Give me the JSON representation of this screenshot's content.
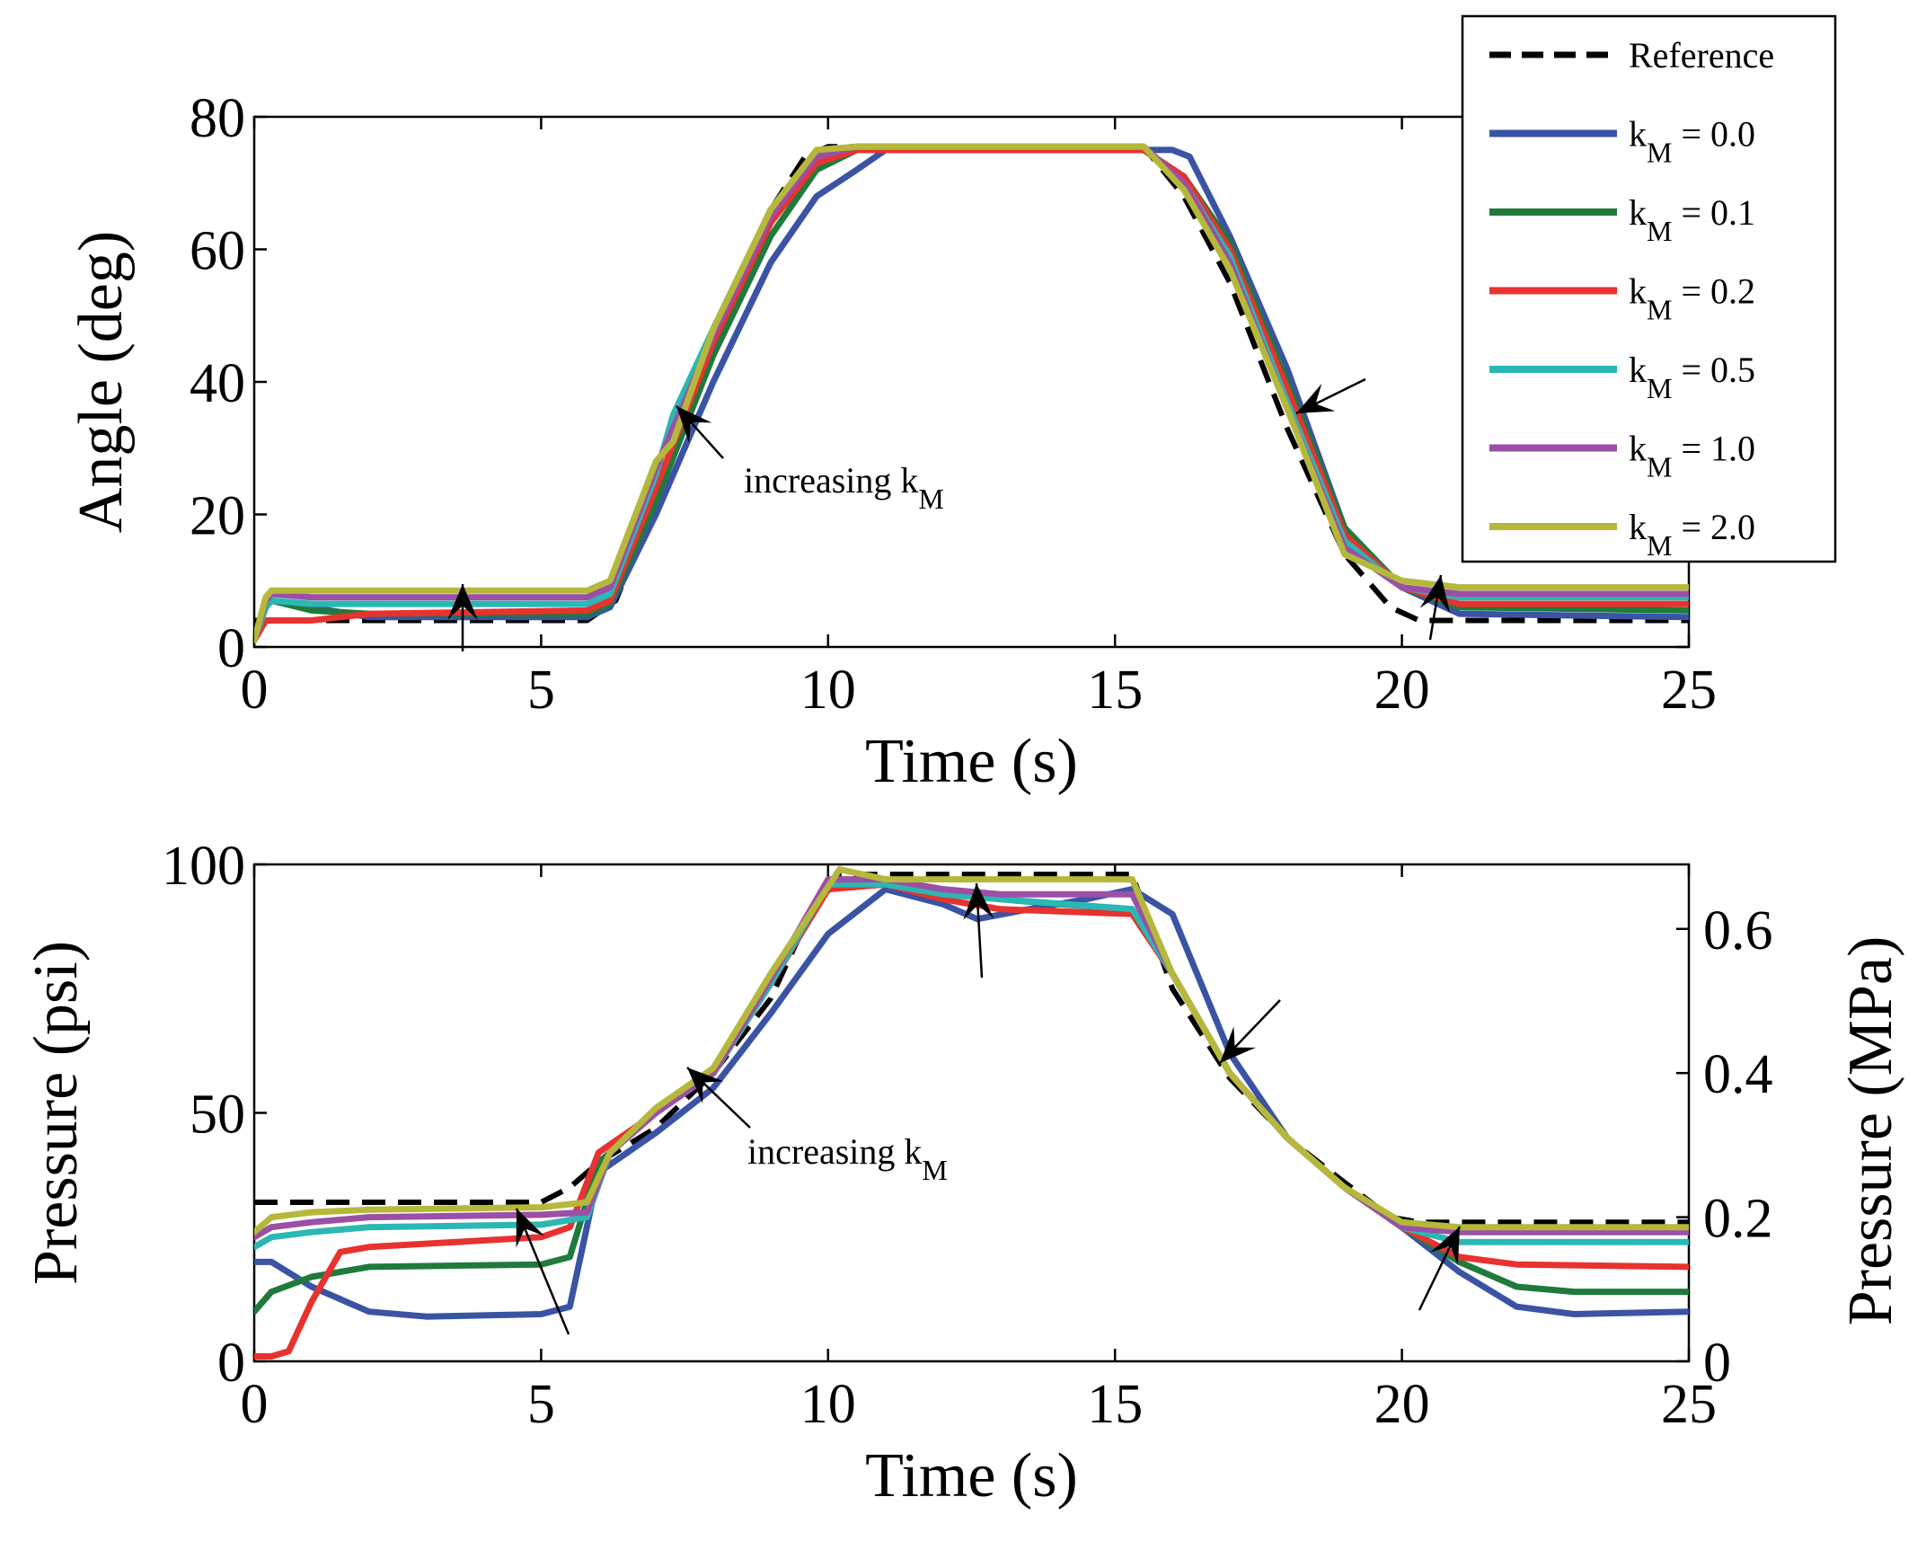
{
  "chart_data": [
    {
      "type": "line",
      "xlabel": "Time (s)",
      "ylabel": "Angle (deg)",
      "xlim": [
        0,
        25
      ],
      "ylim": [
        0,
        80
      ],
      "xticks": [
        "0",
        "5",
        "10",
        "15",
        "20",
        "25"
      ],
      "yticks": [
        "0",
        "20",
        "40",
        "60",
        "80"
      ],
      "grid": false,
      "legend": {
        "placement": "top-right",
        "entries": [
          {
            "label": "Reference"
          },
          {
            "label": "k",
            "sub": "M",
            "rest": " = 0.0"
          },
          {
            "label": "k",
            "sub": "M",
            "rest": " = 0.1"
          },
          {
            "label": "k",
            "sub": "M",
            "rest": " = 0.2"
          },
          {
            "label": "k",
            "sub": "M",
            "rest": " = 0.5"
          },
          {
            "label": "k",
            "sub": "M",
            "rest": " = 1.0"
          },
          {
            "label": "k",
            "sub": "M",
            "rest": " = 2.0"
          }
        ]
      },
      "annotation": {
        "text": "increasing k",
        "sub": "M"
      },
      "series": [
        {
          "name": "Reference",
          "color": "#000000",
          "dashed": true,
          "x": [
            0,
            0.3,
            5.8,
            6.3,
            7,
            8,
            9,
            9.6,
            10,
            15.5,
            16.2,
            17,
            18,
            19,
            19.8,
            20.3,
            25
          ],
          "y": [
            4,
            4,
            4,
            7,
            22,
            45,
            66,
            74,
            75.5,
            75.5,
            68,
            55,
            33,
            14,
            6,
            4,
            4
          ]
        },
        {
          "name": "kM = 0.0",
          "color": "#3a53a4",
          "x": [
            0,
            0.2,
            0.3,
            1,
            2,
            5.8,
            6.2,
            7,
            8,
            9,
            9.8,
            10.5,
            11,
            12,
            15.5,
            16,
            16.3,
            17,
            18,
            19,
            20,
            21,
            25
          ],
          "y": [
            1,
            6,
            7,
            6,
            4.5,
            4.5,
            6,
            20,
            40,
            58,
            68,
            72,
            75,
            75,
            75,
            75,
            74,
            62,
            42,
            18,
            9,
            5,
            4.5
          ]
        },
        {
          "name": "kM = 0.1",
          "color": "#1f7a3c",
          "x": [
            0,
            0.2,
            0.3,
            1,
            2,
            5.8,
            6.2,
            7,
            8,
            9,
            9.8,
            10.5,
            11,
            15.5,
            16.2,
            17,
            18,
            19,
            20,
            21,
            25
          ],
          "y": [
            1,
            6,
            7,
            5.5,
            5,
            5,
            6.5,
            22,
            44,
            62,
            72,
            75,
            75,
            75,
            71,
            61,
            40,
            18,
            9,
            6,
            5.5
          ]
        },
        {
          "name": "kM = 0.2",
          "color": "#e8322f",
          "x": [
            0,
            0.2,
            0.3,
            1,
            2,
            5.8,
            6.2,
            7,
            8,
            9,
            9.8,
            10.5,
            11,
            15.5,
            16.2,
            17,
            18,
            19,
            20,
            21,
            25
          ],
          "y": [
            1,
            4,
            4,
            4,
            5,
            5.5,
            7,
            24,
            46,
            64,
            73,
            75,
            75,
            75,
            71,
            60,
            39,
            17,
            9,
            6.5,
            6.5
          ]
        },
        {
          "name": "kM = 0.5",
          "color": "#2bb7b3",
          "x": [
            0,
            0.2,
            0.3,
            1,
            2,
            5.8,
            6.2,
            7,
            7.3,
            8,
            9,
            9.8,
            10.5,
            11,
            15.5,
            16.2,
            17,
            18,
            19,
            20,
            21,
            25
          ],
          "y": [
            1,
            6,
            7,
            6.5,
            6.5,
            6.5,
            8,
            26,
            35,
            48,
            66,
            74,
            75.5,
            75.5,
            75.5,
            70,
            59,
            37,
            16,
            9,
            7.5,
            7.5
          ]
        },
        {
          "name": "kM = 1.0",
          "color": "#9b4fa6",
          "x": [
            0,
            0.2,
            0.3,
            1,
            2,
            5.8,
            6.2,
            7,
            8,
            9,
            9.8,
            10.5,
            11,
            15.5,
            16.2,
            17,
            18,
            19,
            20,
            21,
            25
          ],
          "y": [
            1,
            7,
            8,
            7.5,
            7.5,
            7.5,
            9,
            27,
            47,
            65,
            74,
            75.5,
            75.5,
            75.5,
            70,
            58,
            36,
            15,
            9,
            8,
            8
          ]
        },
        {
          "name": "kM = 2.0",
          "color": "#b5b83a",
          "x": [
            0,
            0.2,
            0.3,
            1,
            2,
            5.8,
            6.2,
            7,
            7.3,
            8,
            9,
            9.8,
            10.5,
            11,
            15.5,
            16.2,
            17,
            18,
            19,
            20,
            21,
            25
          ],
          "y": [
            1,
            7.5,
            8.5,
            8.5,
            8.5,
            8.5,
            10,
            28,
            31,
            48,
            66,
            75,
            75.5,
            75.5,
            75.5,
            69,
            57,
            36,
            14,
            10,
            9,
            9
          ]
        }
      ]
    },
    {
      "type": "line",
      "xlabel": "Time (s)",
      "ylabel": "Pressure (psi)",
      "y2label": "Pressure (MPa)",
      "xlim": [
        0,
        25
      ],
      "ylim": [
        0,
        100
      ],
      "y2lim": [
        0,
        0.6895
      ],
      "xticks": [
        "0",
        "5",
        "10",
        "15",
        "20",
        "25"
      ],
      "yticks": [
        "0",
        "50",
        "100"
      ],
      "y2ticks": [
        "0",
        "0.2",
        "0.4",
        "0.6"
      ],
      "grid": false,
      "annotation": {
        "text": "increasing k",
        "sub": "M"
      },
      "series": [
        {
          "name": "Reference",
          "color": "#000000",
          "dashed": true,
          "x": [
            0,
            5,
            5.5,
            6,
            7,
            8,
            9,
            9.6,
            10.2,
            15.3,
            16,
            17,
            18,
            19,
            19.8,
            20.3,
            25
          ],
          "y": [
            32,
            32,
            35,
            40,
            47,
            58,
            73,
            88,
            98,
            98,
            75,
            57,
            45,
            36,
            29,
            28,
            28
          ]
        },
        {
          "name": "kM = 0.0",
          "color": "#3a53a4",
          "x": [
            0,
            0.3,
            1,
            2,
            3,
            5,
            5.5,
            6,
            7,
            8,
            9,
            10,
            11,
            12,
            12.6,
            13.5,
            14.5,
            15.3,
            16,
            17,
            18,
            19,
            20,
            21,
            22,
            23,
            25
          ],
          "y": [
            20,
            20,
            15,
            10,
            9,
            9.5,
            11,
            38,
            46,
            55,
            70,
            86,
            95,
            92,
            89,
            91,
            93,
            95,
            90,
            62,
            45,
            35,
            27,
            18,
            11,
            9.5,
            10
          ]
        },
        {
          "name": "kM = 0.1",
          "color": "#1f7a3c",
          "x": [
            0,
            0.3,
            1,
            2,
            5,
            5.5,
            6,
            7,
            8,
            9,
            10,
            11,
            12,
            13,
            14,
            15.3,
            16,
            17,
            18,
            19,
            20,
            21,
            22,
            23,
            25
          ],
          "y": [
            10,
            14,
            17,
            19,
            19.5,
            21,
            40,
            50,
            58,
            76,
            95,
            96,
            94,
            93,
            92,
            91,
            78,
            58,
            45,
            35,
            27,
            20,
            15,
            14,
            14
          ]
        },
        {
          "name": "kM = 0.2",
          "color": "#e8322f",
          "x": [
            0,
            0.3,
            0.6,
            1,
            1.5,
            2,
            5,
            5.5,
            6,
            7,
            8,
            9,
            10,
            11,
            12,
            13,
            15.3,
            16,
            17,
            18,
            19,
            20,
            21,
            22,
            25
          ],
          "y": [
            1,
            1,
            2,
            12,
            22,
            23,
            25,
            27,
            42,
            50,
            58,
            76,
            95,
            96,
            93,
            91,
            90,
            78,
            58,
            45,
            35,
            27,
            21,
            19.5,
            19
          ]
        },
        {
          "name": "kM = 0.5",
          "color": "#2bb7b3",
          "x": [
            0,
            0.3,
            1,
            2,
            5,
            5.8,
            6.2,
            7,
            8,
            9,
            10,
            11,
            12,
            13,
            15.3,
            16,
            17,
            18,
            19,
            20,
            21,
            25
          ],
          "y": [
            23,
            25,
            26,
            27,
            27.5,
            29,
            42,
            50,
            58,
            76,
            96,
            96,
            94,
            93,
            91,
            78,
            58,
            45,
            35,
            27,
            24,
            24
          ]
        },
        {
          "name": "kM = 1.0",
          "color": "#9b4fa6",
          "x": [
            0,
            0.3,
            1,
            2,
            5,
            5.8,
            6.2,
            7,
            8,
            9,
            10,
            11,
            12,
            13,
            15.3,
            16,
            17,
            18,
            19,
            20,
            21,
            25
          ],
          "y": [
            25,
            27,
            28,
            29,
            29.5,
            30,
            42,
            50,
            58,
            77,
            97,
            97,
            95,
            94,
            94,
            78,
            58,
            45,
            35,
            27,
            26,
            26
          ]
        },
        {
          "name": "kM = 2.0",
          "color": "#b5b83a",
          "x": [
            0,
            0.3,
            1,
            2,
            5,
            5.8,
            6.2,
            7,
            8,
            9,
            10.2,
            11,
            12,
            13,
            15.3,
            16,
            17,
            18,
            19,
            20,
            21,
            25
          ],
          "y": [
            26,
            29,
            30,
            30.5,
            31,
            32,
            42,
            51,
            59,
            78,
            99,
            97,
            97,
            97,
            97,
            78,
            58,
            45,
            35,
            28,
            27,
            27
          ]
        }
      ]
    }
  ]
}
